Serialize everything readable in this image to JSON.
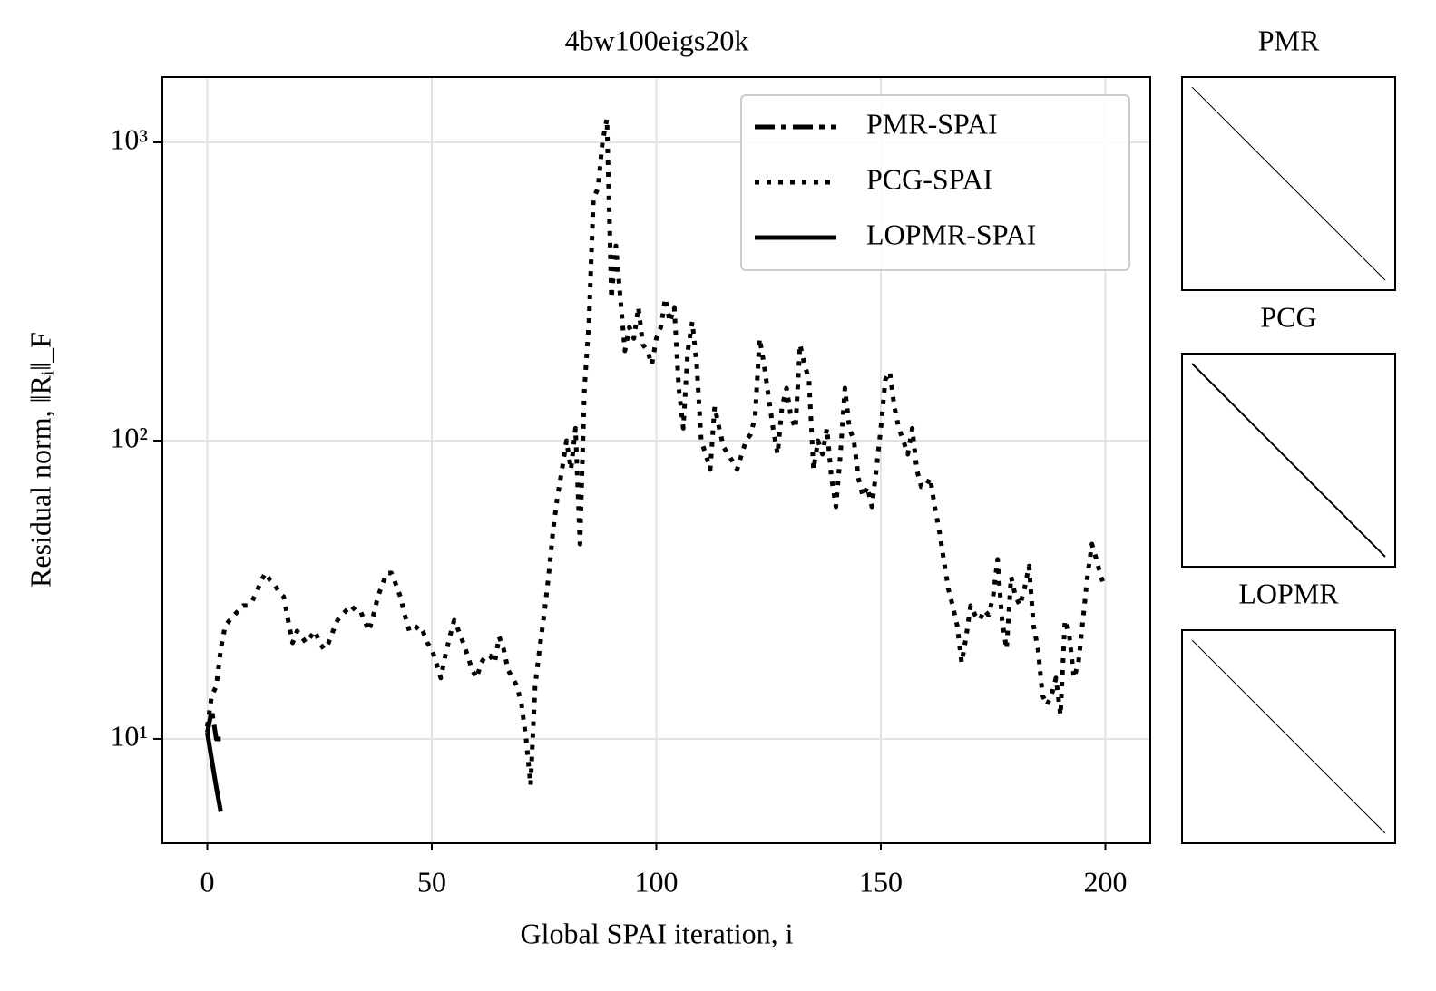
{
  "chart_data": {
    "type": "line",
    "title": "4bw100eigs20k",
    "xlabel": "Global SPAI iteration, i",
    "ylabel": "Residual norm, ‖Rᵢ‖_F",
    "xlim": [
      -10,
      210
    ],
    "xticks": [
      0,
      50,
      100,
      150,
      200
    ],
    "ylim": [
      4.47,
      1655
    ],
    "yscale": "log",
    "yticks": [
      {
        "value": 10,
        "label": "10¹"
      },
      {
        "value": 100,
        "label": "10²"
      },
      {
        "value": 1000,
        "label": "10³"
      }
    ],
    "grid": true,
    "legend": "upper right",
    "series": [
      {
        "name": "PMR-SPAI",
        "color": "#000000",
        "linestyle": "dashdot",
        "x": [
          0,
          1,
          2,
          3
        ],
        "values": [
          10.5,
          12.5,
          10,
          10
        ]
      },
      {
        "name": "PCG-SPAI",
        "color": "#000000",
        "linestyle": "dotted",
        "x": [
          0,
          1,
          2,
          3,
          4,
          5,
          6,
          7,
          8,
          9,
          10,
          11,
          12,
          13,
          14,
          15,
          16,
          17,
          18,
          19,
          20,
          21,
          22,
          23,
          24,
          25,
          26,
          27,
          28,
          29,
          30,
          31,
          32,
          33,
          34,
          35,
          36,
          37,
          38,
          39,
          40,
          41,
          42,
          43,
          44,
          45,
          46,
          47,
          48,
          49,
          50,
          51,
          52,
          53,
          54,
          55,
          56,
          57,
          58,
          59,
          60,
          61,
          62,
          63,
          64,
          65,
          66,
          67,
          68,
          69,
          70,
          71,
          72,
          73,
          74,
          75,
          76,
          77,
          78,
          79,
          80,
          81,
          82,
          83,
          84,
          85,
          86,
          87,
          88,
          89,
          90,
          91,
          92,
          93,
          94,
          95,
          96,
          97,
          98,
          99,
          100,
          101,
          102,
          103,
          104,
          105,
          106,
          107,
          108,
          109,
          110,
          111,
          112,
          113,
          114,
          115,
          116,
          117,
          118,
          119,
          120,
          121,
          122,
          123,
          124,
          125,
          126,
          127,
          128,
          129,
          130,
          131,
          132,
          133,
          134,
          135,
          136,
          137,
          138,
          139,
          140,
          141,
          142,
          143,
          144,
          145,
          146,
          147,
          148,
          149,
          150,
          151,
          152,
          153,
          154,
          155,
          156,
          157,
          158,
          159,
          160,
          161,
          162,
          163,
          164,
          165,
          166,
          167,
          168,
          169,
          170,
          171,
          172,
          173,
          174,
          175,
          176,
          177,
          178,
          179,
          180,
          181,
          182,
          183,
          184,
          185,
          186,
          187,
          188,
          189,
          190,
          191,
          192,
          193,
          194,
          195,
          196,
          197,
          198,
          199,
          200
        ],
        "values": [
          11,
          14,
          15,
          20,
          24,
          25,
          26,
          27,
          28,
          28,
          29,
          31,
          34,
          36,
          34,
          33,
          31,
          30,
          25,
          21,
          23,
          22,
          21,
          22,
          23,
          21,
          20,
          21,
          23,
          25,
          26,
          27,
          28,
          27,
          27,
          25,
          23,
          26,
          30,
          33,
          36,
          36,
          33,
          30,
          26,
          23,
          23,
          24,
          23,
          21,
          20,
          18,
          16,
          19,
          22,
          25,
          23,
          21,
          19,
          17,
          16,
          18,
          19,
          19,
          18,
          22,
          20,
          17,
          16,
          15,
          13,
          10,
          7,
          15,
          20,
          26,
          35,
          50,
          65,
          80,
          100,
          80,
          110,
          45,
          150,
          250,
          650,
          700,
          1000,
          1200,
          300,
          450,
          300,
          200,
          240,
          220,
          280,
          210,
          200,
          180,
          220,
          240,
          300,
          250,
          280,
          150,
          110,
          200,
          250,
          180,
          100,
          90,
          80,
          130,
          110,
          95,
          90,
          85,
          80,
          90,
          100,
          105,
          120,
          220,
          180,
          140,
          110,
          90,
          130,
          150,
          120,
          110,
          210,
          180,
          160,
          80,
          100,
          90,
          110,
          75,
          60,
          90,
          150,
          110,
          100,
          75,
          65,
          70,
          60,
          80,
          110,
          160,
          170,
          130,
          110,
          100,
          90,
          110,
          80,
          70,
          70,
          75,
          60,
          50,
          40,
          32,
          28,
          24,
          18,
          22,
          28,
          26,
          25,
          27,
          26,
          30,
          40,
          25,
          20,
          35,
          30,
          28,
          32,
          38,
          24,
          20,
          14,
          13,
          14,
          16,
          12,
          25,
          22,
          16,
          18,
          25,
          35,
          45,
          40,
          35,
          32
        ]
      },
      {
        "name": "LOPMR-SPAI",
        "color": "#000000",
        "linestyle": "solid",
        "x": [
          0,
          1,
          2,
          3
        ],
        "values": [
          10.5,
          8.5,
          6.9,
          5.7
        ]
      }
    ],
    "panels": [
      {
        "title": "PMR"
      },
      {
        "title": "PCG"
      },
      {
        "title": "LOPMR"
      }
    ]
  }
}
